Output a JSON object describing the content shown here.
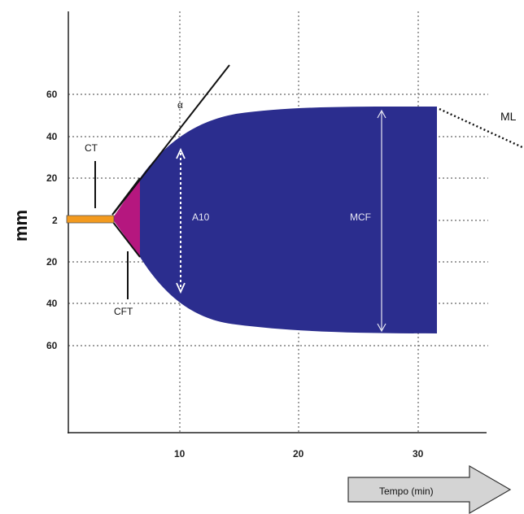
{
  "diagram": {
    "y_unit": "mm",
    "y_ticks": [
      "60",
      "40",
      "20",
      "2",
      "20",
      "40",
      "60"
    ],
    "x_ticks": [
      "10",
      "20",
      "30"
    ],
    "labels": {
      "ct": "CT",
      "cft": "CFT",
      "alpha": "α",
      "a10": "A10",
      "mcf": "MCF",
      "ml": "ML"
    },
    "time_arrow": "Tempo (min)",
    "colors": {
      "clot_body": "#2b2d8e",
      "cft_region": "#b5177f",
      "ct_line": "#f39a1e",
      "time_arrow": "#d4d4d4"
    }
  }
}
